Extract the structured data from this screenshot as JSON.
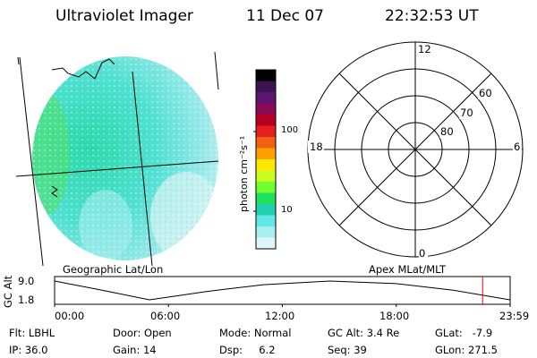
{
  "header": {
    "instrument": "Ultraviolet Imager",
    "date": "11 Dec 07",
    "time": "22:32:53 UT"
  },
  "image_panel": {
    "label": "Geographic Lat/Lon"
  },
  "colorbar": {
    "unit_label": "photon cm⁻²s⁻¹",
    "tick_labels": [
      "100",
      "10"
    ],
    "colors": [
      "#000000",
      "#3a1550",
      "#5b1670",
      "#8c0a55",
      "#b50020",
      "#e32020",
      "#f06010",
      "#ffa000",
      "#ffe800",
      "#c8ff20",
      "#70ff30",
      "#20e060",
      "#20d0b0",
      "#60e8e8",
      "#a8f0f0",
      "#dff6f6"
    ]
  },
  "polar_plot": {
    "label": "Apex MLat/MLT",
    "mlt_labels": {
      "top": "12",
      "left": "18",
      "right": "6",
      "bottom": "0"
    },
    "lat_labels": [
      "60",
      "70",
      "80"
    ]
  },
  "alt_plot": {
    "ylabel": "GC Alt",
    "yticks": [
      "9.0",
      "1.8"
    ],
    "xticks": [
      "00:00",
      "06:00",
      "12:00",
      "18:00",
      "23:59"
    ],
    "altitude_series": [
      {
        "hour": 0,
        "alt": 9.0
      },
      {
        "hour": 2.5,
        "alt": 5.5
      },
      {
        "hour": 5.0,
        "alt": 1.8
      },
      {
        "hour": 8.0,
        "alt": 5.0
      },
      {
        "hour": 11.0,
        "alt": 7.6
      },
      {
        "hour": 14.5,
        "alt": 9.0
      },
      {
        "hour": 18.0,
        "alt": 8.0
      },
      {
        "hour": 21.0,
        "alt": 5.5
      },
      {
        "hour": 23.98,
        "alt": 1.8
      }
    ],
    "current_hour": 22.55,
    "marker_color": "#ff0000"
  },
  "info": {
    "flt": "Flt: LBHL",
    "door": "Door: Open",
    "mode": "Mode: Normal",
    "gc_alt": "GC Alt: 3.4 Re",
    "glat": "GLat:   -7.9",
    "ip": "IP: 36.0",
    "gain": "Gain: 14",
    "dsp": "Dsp:     6.2",
    "seq": "Seq: 39",
    "glon": "GLon: 271.5"
  }
}
